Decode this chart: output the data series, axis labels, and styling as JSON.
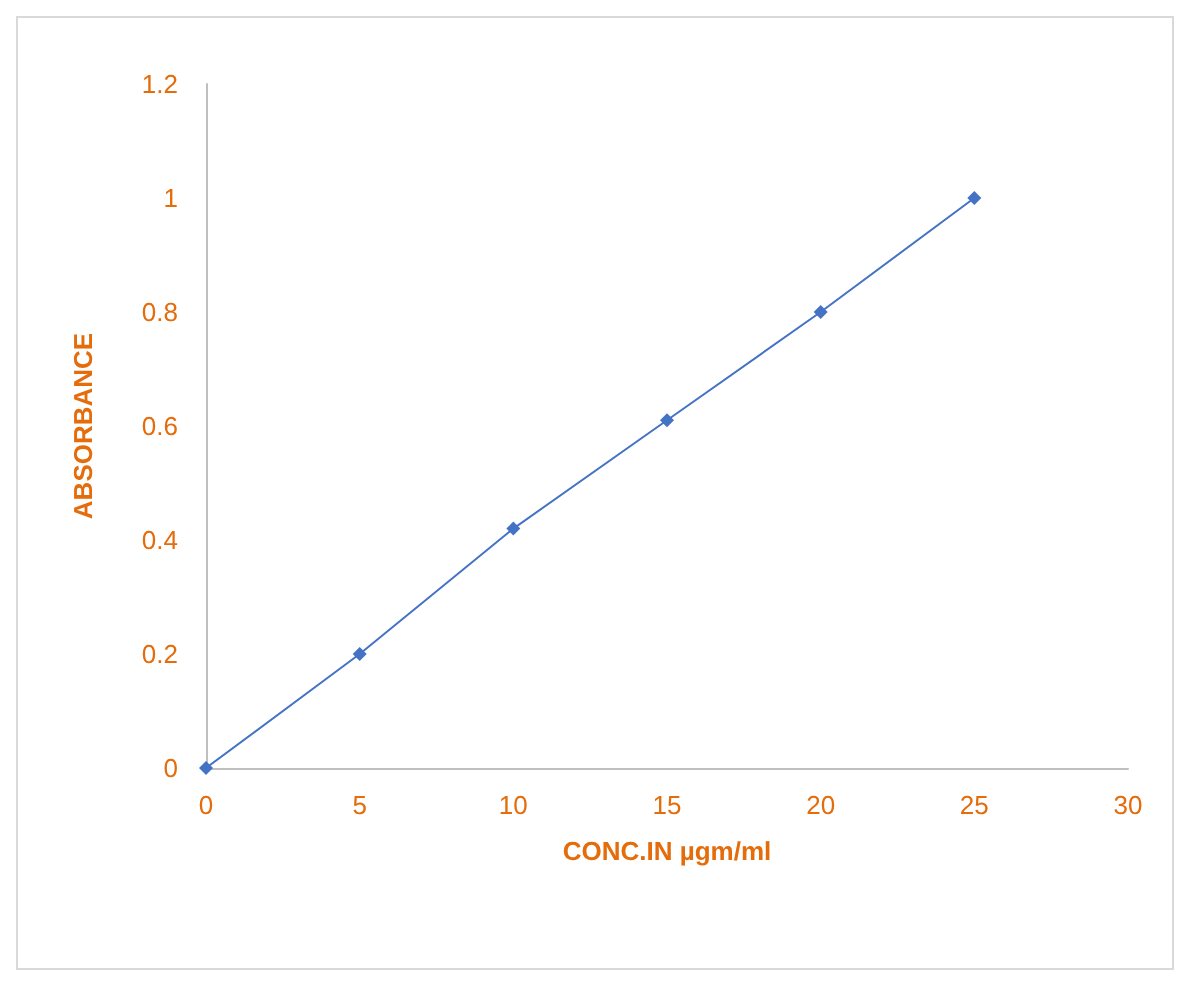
{
  "chart_data": {
    "type": "line",
    "xlabel": "CONC.IN µgm/ml",
    "ylabel": "ABSORBANCE",
    "x": [
      0,
      5,
      10,
      15,
      20,
      25
    ],
    "series": [
      {
        "color": "#4472c4",
        "values": [
          0,
          0.2,
          0.42,
          0.61,
          0.8,
          1.0
        ]
      }
    ],
    "xlim": [
      0,
      30
    ],
    "xticks": [
      0,
      5,
      10,
      15,
      20,
      25,
      30
    ],
    "ylim": [
      0,
      1.2
    ],
    "yticks": [
      0,
      0.2,
      0.4,
      0.6,
      0.8,
      1,
      1.2
    ],
    "grid": false,
    "marker": "diamond",
    "line_style": "solid"
  }
}
